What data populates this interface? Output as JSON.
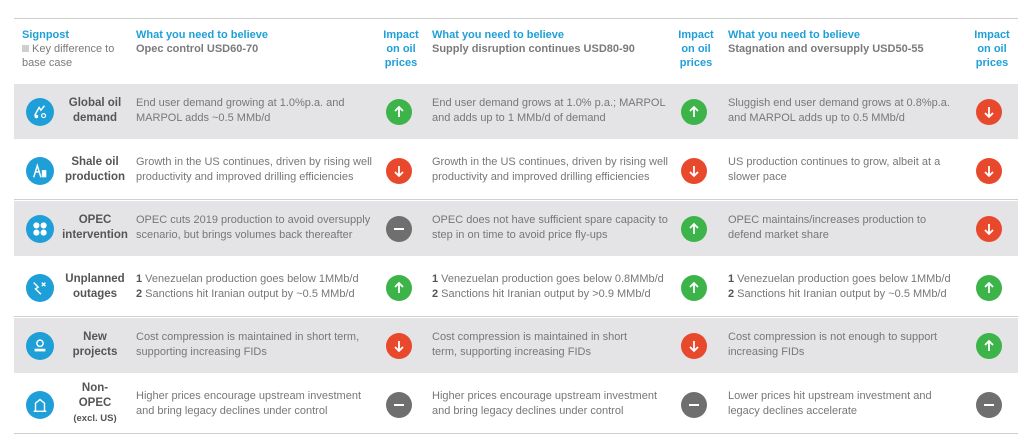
{
  "header": {
    "signpost": "Signpost",
    "key_diff": "Key difference to base case",
    "scenarios": [
      {
        "title": "What you need to believe",
        "subtitle": "Opec control USD60-70",
        "impact": "Impact on oil prices"
      },
      {
        "title": "What you need to believe",
        "subtitle": "Supply disruption continues USD80-90",
        "impact": "Impact on oil prices"
      },
      {
        "title": "What you need to believe",
        "subtitle": "Stagnation and oversupply USD50-55",
        "impact": "Impact on oil prices"
      }
    ]
  },
  "rows": [
    {
      "label1": "Global oil",
      "label2": "demand",
      "icon": "oil-demand-icon",
      "cells": [
        {
          "l1": "End user demand growing at 1.0%p.a. and",
          "l2": "MARPOL adds ~0.5 MMb/d",
          "impact": "up"
        },
        {
          "l1": "End user demand grows at 1.0% p.a.; MARPOL",
          "l2": "and adds up to 1 MMb/d of demand",
          "impact": "up"
        },
        {
          "l1": "Sluggish end user demand grows at 0.8%p.a.",
          "l2": "and MARPOL adds up to 0.5 MMb/d",
          "impact": "down"
        }
      ]
    },
    {
      "label1": "Shale oil",
      "label2": "production",
      "icon": "shale-rig-icon",
      "cells": [
        {
          "l1": "Growth in the US continues, driven by rising well",
          "l2": "productivity and improved drilling efficiencies",
          "impact": "down"
        },
        {
          "l1": "Growth in the US continues, driven by rising well",
          "l2": "productivity and improved drilling efficiencies",
          "impact": "down"
        },
        {
          "l1": "US production continues to grow, albeit at a",
          "l2": "slower pace",
          "impact": "down"
        }
      ]
    },
    {
      "label1": "OPEC",
      "label2": "intervention",
      "icon": "opec-logo-icon",
      "cells": [
        {
          "l1": "OPEC cuts 2019 production to avoid oversupply",
          "l2": "scenario, but brings volumes back thereafter",
          "impact": "flat"
        },
        {
          "l1": "OPEC does not have sufficient spare capacity to",
          "l2": "step in on time to avoid price fly-ups",
          "impact": "up"
        },
        {
          "l1": "OPEC maintains/increases production to",
          "l2": "defend market share",
          "impact": "down"
        }
      ]
    },
    {
      "label1": "Unplanned",
      "label2": "outages",
      "icon": "outage-icon",
      "cells": [
        {
          "n1": "1",
          "l1": " Venezuelan production goes below 1MMb/d",
          "n2": "2",
          "l2": " Sanctions hit Iranian output by ~0.5 MMb/d",
          "impact": "up"
        },
        {
          "n1": "1",
          "l1": " Venezuelan production goes below 0.8MMb/d",
          "n2": "2",
          "l2": " Sanctions hit Iranian output by >0.9 MMb/d",
          "impact": "up"
        },
        {
          "n1": "1",
          "l1": " Venezuelan production goes below 1MMb/d",
          "n2": "2",
          "l2": " Sanctions hit Iranian output by ~0.5 MMb/d",
          "impact": "up"
        }
      ]
    },
    {
      "label1": "New",
      "label2": "projects",
      "icon": "new-projects-icon",
      "cells": [
        {
          "l1": "Cost compression is maintained in short term,",
          "l2": "supporting increasing FIDs",
          "impact": "down"
        },
        {
          "l1": "Cost compression is maintained in short",
          "l2": "term, supporting increasing FIDs",
          "impact": "down"
        },
        {
          "l1": "Cost compression is not enough to support",
          "l2": "increasing FIDs",
          "impact": "up"
        }
      ]
    },
    {
      "label1": "Non-",
      "label2": "OPEC",
      "label3": "(excl. US)",
      "icon": "non-opec-icon",
      "cells": [
        {
          "l1": "Higher prices encourage upstream investment",
          "l2": "and bring legacy declines under control",
          "impact": "flat"
        },
        {
          "l1": "Higher prices encourage upstream investment",
          "l2": "and bring legacy declines under control",
          "impact": "flat"
        },
        {
          "l1": "Lower prices hit upstream investment and",
          "l2": "legacy declines accelerate",
          "impact": "flat"
        }
      ]
    }
  ]
}
